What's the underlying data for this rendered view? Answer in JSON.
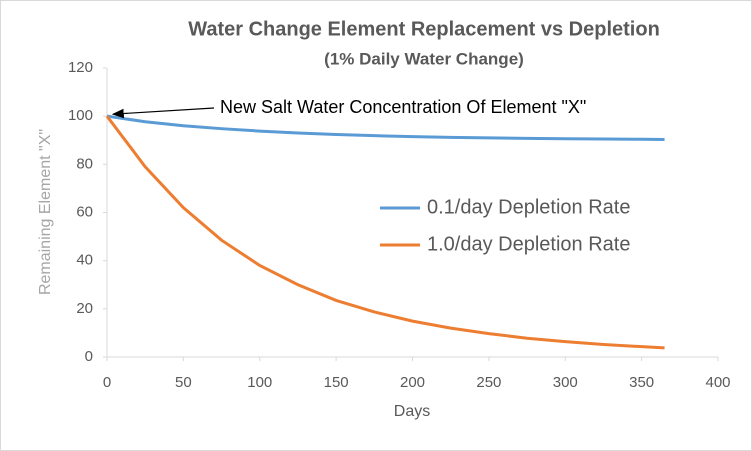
{
  "chart_data": {
    "type": "line",
    "title": "Water Change Element Replacement vs Depletion",
    "subtitle": "(1% Daily Water Change)",
    "x_label": "Days",
    "y_label": "Remaining Element \"X\"",
    "annotation": "New Salt Water Concentration Of Element \"X\"",
    "x": [
      0,
      25,
      50,
      75,
      100,
      125,
      150,
      175,
      200,
      225,
      250,
      275,
      300,
      325,
      350,
      365
    ],
    "series": [
      {
        "name": "0.1/day Depletion Rate",
        "color": "#5b9bd5",
        "values": [
          100,
          97.7,
          96,
          94.8,
          93.8,
          93,
          92.4,
          91.9,
          91.5,
          91.2,
          91,
          90.8,
          90.6,
          90.5,
          90.4,
          90.3
        ]
      },
      {
        "name": "1.0/day Depletion Rate",
        "color": "#ed7d31",
        "values": [
          100,
          79,
          62,
          48.5,
          38,
          30,
          23.5,
          18.7,
          14.9,
          12,
          9.7,
          7.8,
          6.4,
          5.2,
          4.3,
          3.8
        ]
      }
    ],
    "xlim": [
      0,
      400
    ],
    "xticks": [
      0,
      50,
      100,
      150,
      200,
      250,
      300,
      350,
      400
    ],
    "ylim": [
      0,
      120
    ],
    "yticks": [
      0,
      20,
      40,
      60,
      80,
      100,
      120
    ],
    "grid": false,
    "legend": "right"
  }
}
